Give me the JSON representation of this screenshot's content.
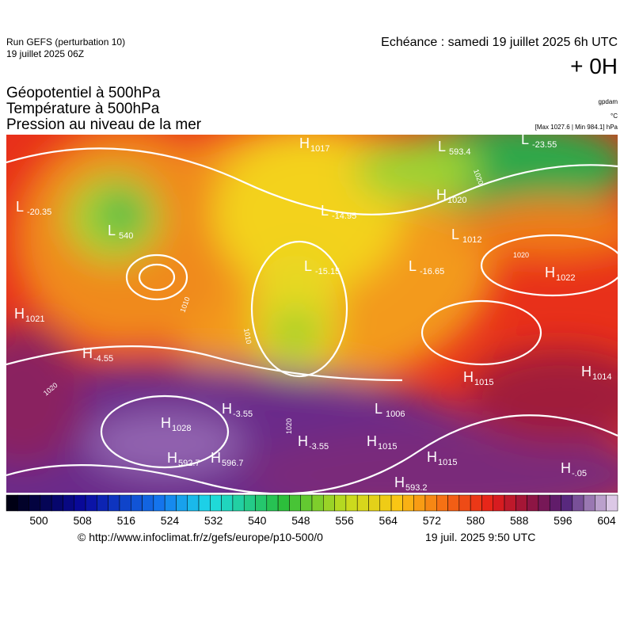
{
  "header": {
    "run": "Run GEFS (perturbation 10)",
    "run_date": "19 juillet 2025 06Z",
    "echeance": "Echéance : samedi 19 juillet 2025 6h UTC",
    "offset": "+ 0H"
  },
  "titles": [
    "Géopotentiel à 500hPa",
    "Température à 500hPa",
    "Pression au niveau de la mer"
  ],
  "units": {
    "geopotential": "gpdam",
    "temperature": "°C",
    "pressure": "[Max 1027.6 | Min 984.1] hPa"
  },
  "map_labels": [
    {
      "symbol": "L",
      "value": "-20.35"
    },
    {
      "symbol": "L",
      "value": "540"
    },
    {
      "symbol": "H",
      "value": "1021"
    },
    {
      "symbol": "H",
      "value": "-4.55"
    },
    {
      "symbol": "H",
      "value": "1028"
    },
    {
      "symbol": "H",
      "value": "-3.55"
    },
    {
      "symbol": "H",
      "value": "592.7"
    },
    {
      "symbol": "H",
      "value": "596.7"
    },
    {
      "symbol": "H",
      "value": "1017"
    },
    {
      "symbol": "L",
      "value": "-14.95"
    },
    {
      "symbol": "L",
      "value": "-15.15"
    },
    {
      "symbol": "L",
      "value": "593.4"
    },
    {
      "symbol": "L",
      "value": "-23.55"
    },
    {
      "symbol": "H",
      "value": "1020"
    },
    {
      "symbol": "L",
      "value": "1012"
    },
    {
      "symbol": "L",
      "value": "-16.65"
    },
    {
      "symbol": "H",
      "value": "1022"
    },
    {
      "symbol": "H",
      "value": "1015"
    },
    {
      "symbol": "H",
      "value": "1014"
    },
    {
      "symbol": "L",
      "value": "1006"
    },
    {
      "symbol": "H",
      "value": "1015"
    },
    {
      "symbol": "H",
      "value": "-3.55"
    },
    {
      "symbol": "H",
      "value": "1015"
    },
    {
      "symbol": "H",
      "value": "593.2"
    },
    {
      "symbol": "H",
      "value": "-.05"
    }
  ],
  "contour_labels": [
    "1010",
    "1020",
    "1020",
    "1020",
    "1010",
    "1020"
  ],
  "colorbar": {
    "ticks": [
      500,
      508,
      516,
      524,
      532,
      540,
      548,
      556,
      564,
      572,
      580,
      588,
      596,
      604
    ]
  },
  "footer": {
    "source": "© http://www.infoclimat.fr/z/gefs/europe/p10-500/0",
    "generated": "19 juil. 2025  9:50 UTC"
  }
}
